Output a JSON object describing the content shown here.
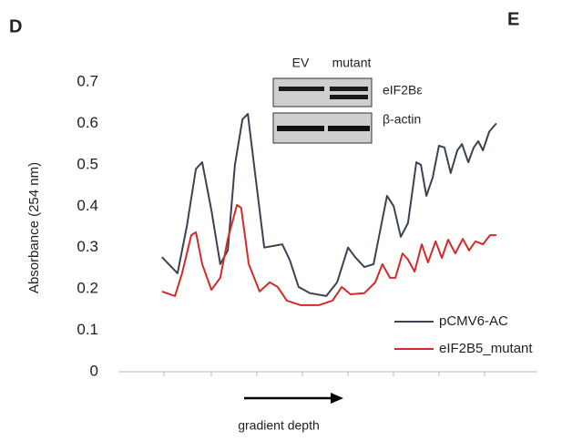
{
  "panel_labels": [
    "D",
    "E"
  ],
  "blot": {
    "lanes": [
      "EV",
      "mutant"
    ],
    "rows": [
      "eIF2Bε",
      "β-actin"
    ]
  },
  "chart_data": {
    "type": "line",
    "y_label": "Absorbance (254 nm)",
    "x_label": "gradient depth",
    "xlim": [
      0,
      100
    ],
    "ylim": [
      0,
      0.7
    ],
    "yticks": [
      0,
      0.1,
      0.2,
      0.3,
      0.4,
      0.5,
      0.6,
      0.7
    ],
    "legend": "lower right",
    "series": [
      {
        "name": "pCMV6-AC",
        "color": "#3b4252",
        "x": [
          10.4,
          14.1,
          16.3,
          18.5,
          20,
          22.2,
          24.3,
          26.1,
          27.8,
          29.6,
          30.9,
          32.6,
          34.8,
          37,
          39.1,
          40.9,
          43,
          45.7,
          49.6,
          52.2,
          54.8,
          56.5,
          58.7,
          60.9,
          62.6,
          64.1,
          65.7,
          67.4,
          69.1,
          71.1,
          72.2,
          73.5,
          75,
          76.5,
          77.8,
          79.3,
          80.9,
          82,
          83.5,
          84.8,
          85.9,
          87,
          88.5,
          90.2
        ],
        "values": [
          0.277,
          0.238,
          0.35,
          0.49,
          0.506,
          0.39,
          0.26,
          0.293,
          0.5,
          0.61,
          0.623,
          0.48,
          0.3,
          0.304,
          0.308,
          0.27,
          0.205,
          0.19,
          0.183,
          0.216,
          0.3,
          0.277,
          0.253,
          0.26,
          0.348,
          0.425,
          0.4,
          0.326,
          0.359,
          0.506,
          0.5,
          0.425,
          0.469,
          0.546,
          0.542,
          0.48,
          0.535,
          0.55,
          0.506,
          0.542,
          0.557,
          0.535,
          0.58,
          0.6
        ]
      },
      {
        "name": "eIF2B5_mutant",
        "color": "#d42a2a",
        "x": [
          10.4,
          13.5,
          15.2,
          17.4,
          18.5,
          20,
          22.2,
          24.3,
          26.1,
          28.3,
          29.3,
          31.1,
          33.7,
          36.1,
          38,
          40.2,
          43.5,
          47.8,
          51.1,
          53.3,
          55.4,
          58.7,
          61.3,
          63,
          64.8,
          66.1,
          67.8,
          69.1,
          70.7,
          72.4,
          73.9,
          75.7,
          77.2,
          78.7,
          80.4,
          82.2,
          83.7,
          85.2,
          87,
          88.7,
          90.2
        ],
        "values": [
          0.194,
          0.183,
          0.238,
          0.33,
          0.337,
          0.26,
          0.198,
          0.227,
          0.321,
          0.403,
          0.396,
          0.26,
          0.194,
          0.216,
          0.205,
          0.172,
          0.161,
          0.161,
          0.172,
          0.205,
          0.187,
          0.19,
          0.216,
          0.26,
          0.227,
          0.227,
          0.286,
          0.271,
          0.242,
          0.308,
          0.264,
          0.315,
          0.275,
          0.319,
          0.286,
          0.321,
          0.293,
          0.315,
          0.308,
          0.33,
          0.33
        ]
      }
    ]
  }
}
